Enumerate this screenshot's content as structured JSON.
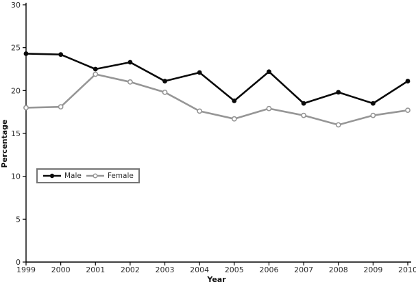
{
  "chart_data": {
    "type": "line",
    "title": "",
    "xlabel": "Year",
    "ylabel": "Percentage",
    "x": [
      1999,
      2000,
      2001,
      2002,
      2003,
      2004,
      2005,
      2006,
      2007,
      2008,
      2009,
      2010
    ],
    "series": [
      {
        "name": "Male",
        "values": [
          24.3,
          24.2,
          22.5,
          23.3,
          21.1,
          22.1,
          18.8,
          22.2,
          18.5,
          19.8,
          18.5,
          21.1
        ],
        "color": "#0a0a0a",
        "marker": "filled-circle"
      },
      {
        "name": "Female",
        "values": [
          18.0,
          18.1,
          21.9,
          21.0,
          19.8,
          17.6,
          16.7,
          17.9,
          17.1,
          16.0,
          17.1,
          17.7
        ],
        "color": "#969696",
        "marker": "open-circle"
      }
    ],
    "ylim": [
      0,
      30
    ],
    "yticks": [
      0,
      5,
      10,
      15,
      20,
      25,
      30
    ],
    "grid": false,
    "legend_position": "left-middle-inside",
    "background": "#ffffff",
    "axis_color": "#000000",
    "text_color": "#2b2b2b"
  }
}
